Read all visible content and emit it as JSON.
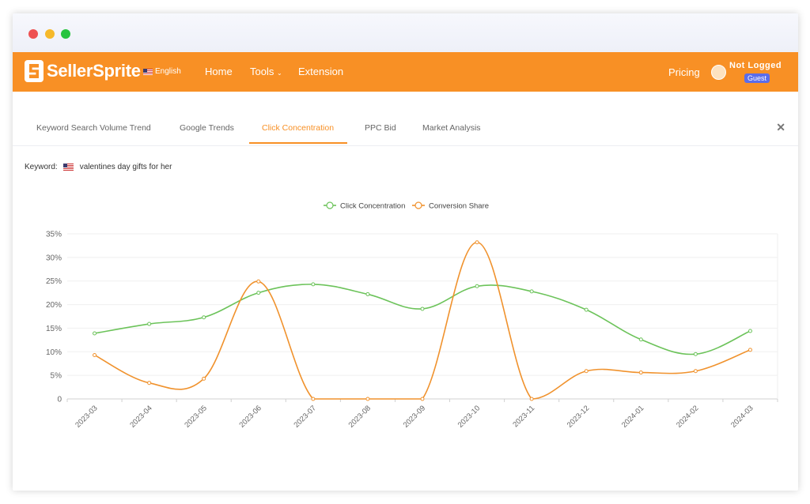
{
  "brand": {
    "name": "SellerSprite",
    "language": "English",
    "accent": "#f89025"
  },
  "nav": {
    "home": "Home",
    "tools": "Tools",
    "extension": "Extension",
    "pricing": "Pricing"
  },
  "user": {
    "status": "Not Logged",
    "badge": "Guest"
  },
  "tabs": [
    {
      "label": "Keyword Search Volume Trend"
    },
    {
      "label": "Google Trends"
    },
    {
      "label": "Click Concentration"
    },
    {
      "label": "PPC Bid"
    },
    {
      "label": "Market Analysis"
    }
  ],
  "keyword": {
    "label": "Keyword:",
    "value": "valentines day gifts for her"
  },
  "chart_data": {
    "type": "line",
    "categories": [
      "2023-03",
      "2023-04",
      "2023-05",
      "2023-06",
      "2023-07",
      "2023-08",
      "2023-09",
      "2023-10",
      "2023-11",
      "2023-12",
      "2024-01",
      "2024-02",
      "2024-03"
    ],
    "series": [
      {
        "name": "Click Concentration",
        "color": "#6cc35a",
        "values": [
          13.9,
          15.9,
          17.3,
          22.5,
          24.3,
          22.2,
          19.1,
          23.9,
          22.8,
          18.9,
          12.6,
          9.5,
          14.4
        ]
      },
      {
        "name": "Conversion Share",
        "color": "#f0922d",
        "values": [
          9.3,
          3.4,
          4.3,
          24.9,
          0,
          0,
          0,
          33.2,
          0,
          5.9,
          5.6,
          5.9,
          10.4
        ]
      }
    ],
    "y_ticks": [
      "0",
      "5%",
      "10%",
      "15%",
      "20%",
      "25%",
      "30%",
      "35%"
    ],
    "ylim": [
      0,
      35
    ],
    "legend": "top-center",
    "grid": true
  }
}
